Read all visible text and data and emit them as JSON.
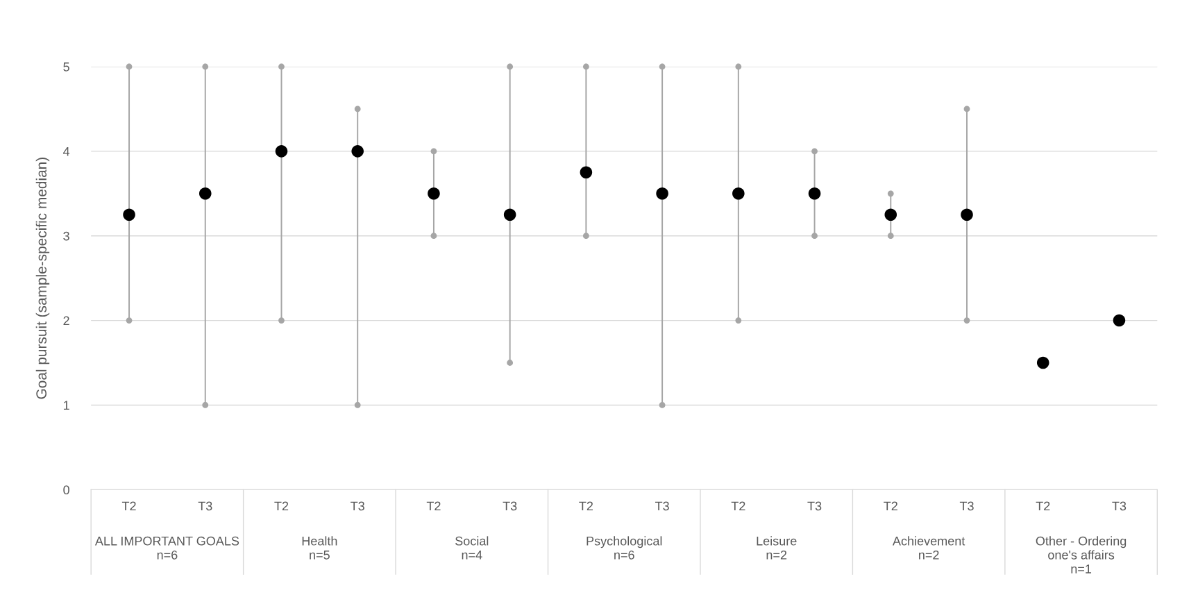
{
  "chart_data": {
    "type": "scatter",
    "ylabel": "Goal pursuit (sample-specific median)",
    "categories": [
      "T2",
      "T3",
      "T2",
      "T3",
      "T2",
      "T3",
      "T2",
      "T3",
      "T2",
      "T3",
      "T2",
      "T3",
      "T2",
      "T3"
    ],
    "annotations": [
      "ALL IMPORTANT GOALS\nn=6",
      "Health\nn=5",
      "Social\nn=4",
      "Psychological\nn=6",
      "Leisure\nn=2",
      "Achievement\nn=2",
      "Other - Ordering\none's affairs\nn=1"
    ],
    "series": [
      {
        "type": "bar",
        "color": "#a6a6a6",
        "base": [
          2,
          1,
          2,
          1,
          3,
          1.5,
          3,
          1,
          2,
          3,
          3,
          2,
          null,
          null
        ],
        "values": [
          3,
          4,
          3,
          3.5,
          1,
          3.5,
          2,
          4,
          3,
          1,
          0.5,
          2.5,
          null,
          null
        ]
      },
      {
        "color": "#a6a6a6",
        "values": [
          2,
          1,
          2,
          1,
          3,
          1.5,
          3,
          1,
          2,
          3,
          3,
          2,
          null,
          null
        ]
      },
      {
        "color": "#a6a6a6",
        "values": [
          5,
          5,
          5,
          4.5,
          4,
          5,
          5,
          5,
          5,
          4,
          3.5,
          4.5,
          null,
          null
        ]
      },
      {
        "color": "#000000",
        "values": [
          3.25,
          3.5,
          4,
          4,
          3.5,
          3.25,
          3.75,
          3.5,
          3.5,
          3.5,
          3.25,
          3.25,
          1.5,
          2
        ]
      }
    ],
    "ylim": [
      0,
      5
    ],
    "yticks": [
      0,
      1,
      2,
      3,
      4,
      5
    ],
    "grid": "y",
    "marker": "circle"
  }
}
